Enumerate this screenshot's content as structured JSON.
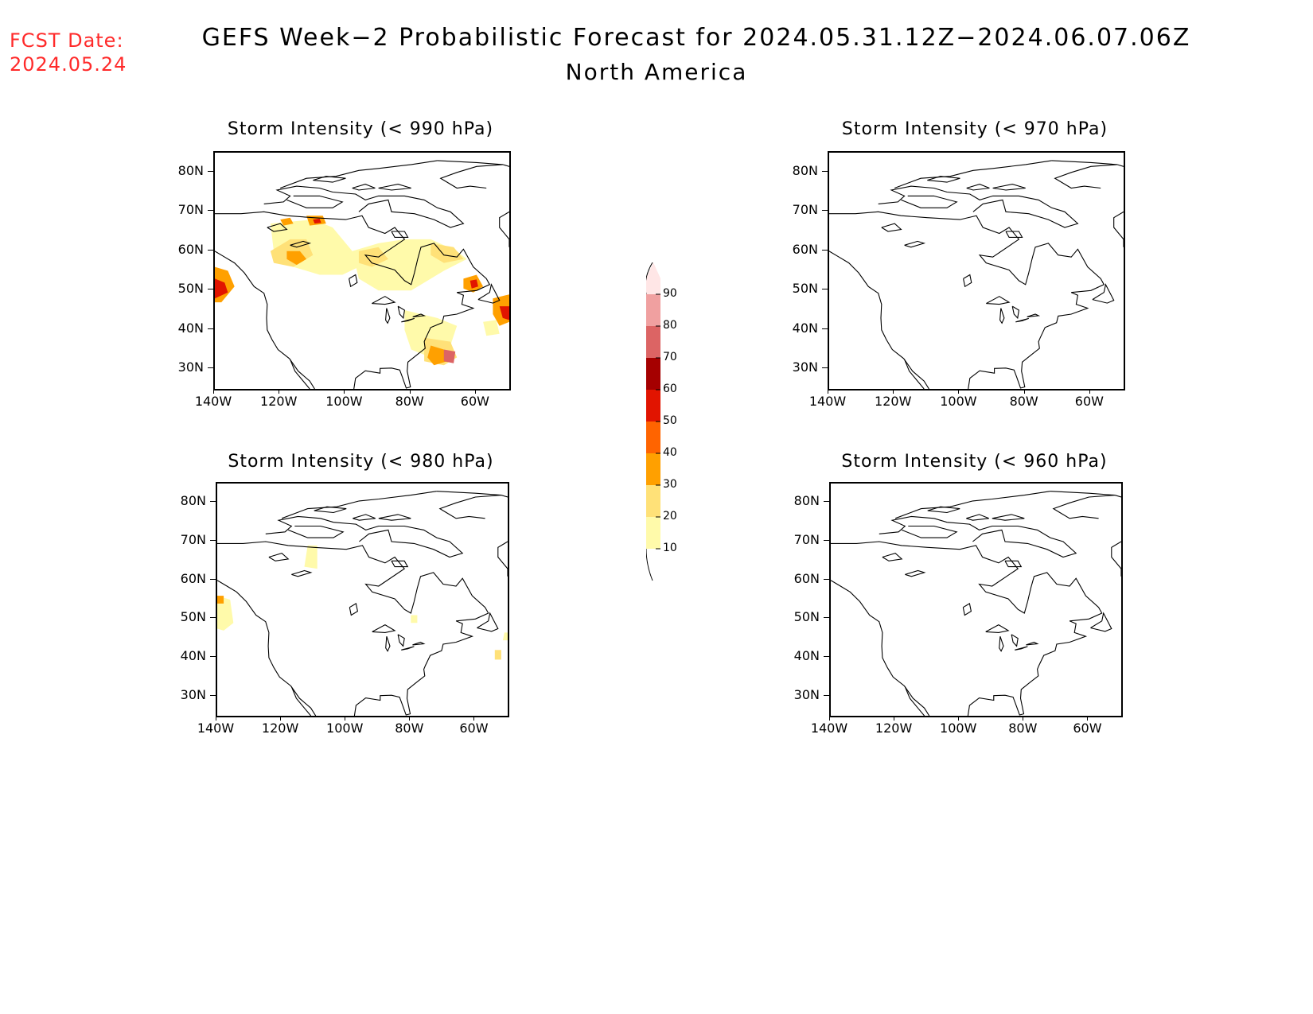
{
  "header": {
    "fcst_label": "FCST Date:",
    "fcst_date": "2024.05.24",
    "title": "GEFS Week−2 Probabilistic Forecast for 2024.05.31.12Z−2024.06.07.06Z",
    "region": "North America"
  },
  "panels": [
    {
      "id": "p990",
      "title": "Storm Intensity (< 990 hPa)",
      "has_fill": true
    },
    {
      "id": "p970",
      "title": "Storm Intensity (< 970 hPa)",
      "has_fill": false
    },
    {
      "id": "p980",
      "title": "Storm Intensity (< 980 hPa)",
      "has_fill": true
    },
    {
      "id": "p960",
      "title": "Storm Intensity (< 960 hPa)",
      "has_fill": false
    }
  ],
  "axes": {
    "lat_labels": [
      "80N",
      "70N",
      "60N",
      "50N",
      "40N",
      "30N"
    ],
    "lon_labels": [
      "140W",
      "120W",
      "100W",
      "80W",
      "60W"
    ],
    "lat_range": [
      25,
      85
    ],
    "lon_range": [
      -140,
      -50
    ]
  },
  "colorbar": {
    "levels": [
      "10",
      "20",
      "30",
      "40",
      "50",
      "60",
      "70",
      "80",
      "90"
    ],
    "colors": [
      "#fffaaa",
      "#ffe178",
      "#ffa000",
      "#ff6400",
      "#e11400",
      "#a50000",
      "#dc6464",
      "#f0a0a0",
      "#ffe6e6"
    ]
  }
}
